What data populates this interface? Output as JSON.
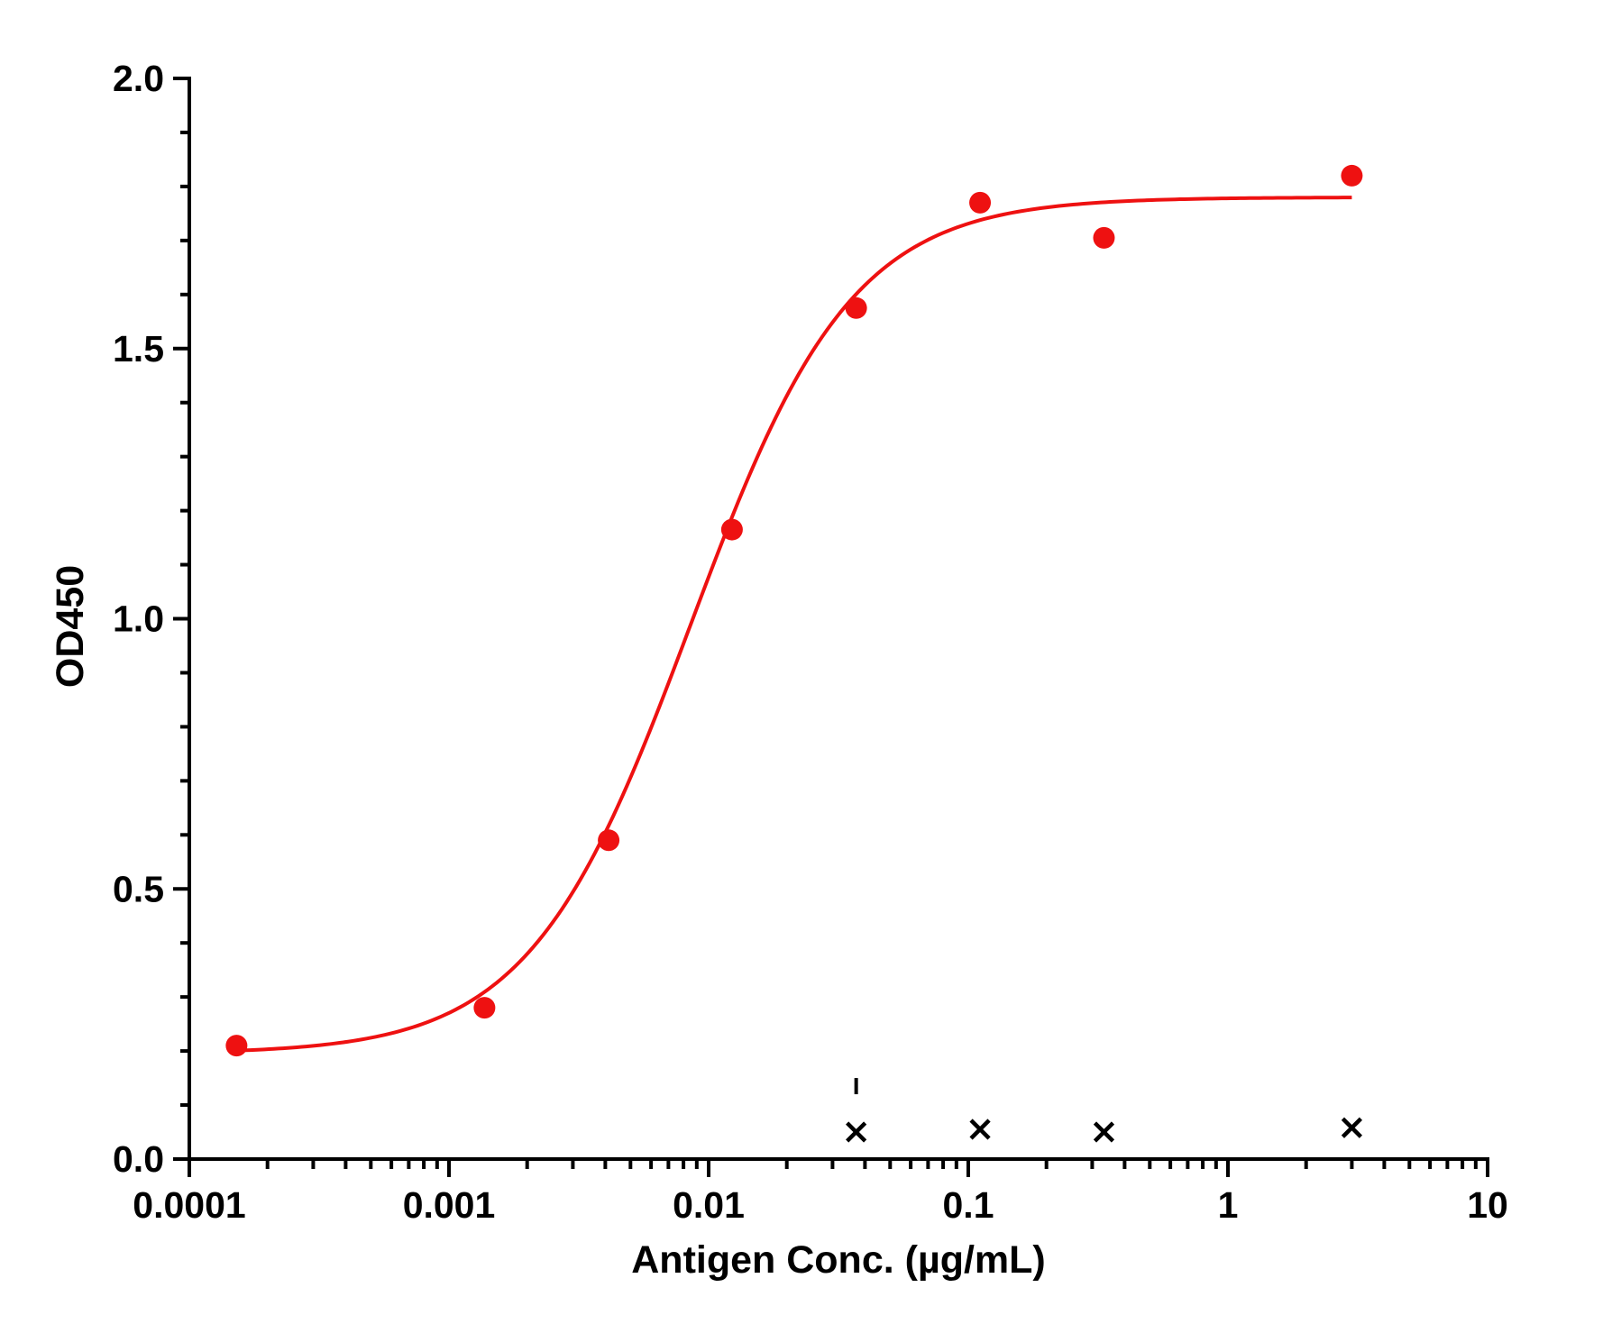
{
  "chart_data": {
    "type": "scatter",
    "xlabel": "Antigen Conc. (µg/mL)",
    "ylabel": "OD450",
    "xscale": "log",
    "xlim": [
      0.0001,
      10
    ],
    "ylim": [
      0,
      2.0
    ],
    "x_ticks": [
      {
        "value": 0.0001,
        "label": "0.0001"
      },
      {
        "value": 0.001,
        "label": "0.001"
      },
      {
        "value": 0.01,
        "label": "0.01"
      },
      {
        "value": 0.1,
        "label": "0.1"
      },
      {
        "value": 1,
        "label": "1"
      },
      {
        "value": 10,
        "label": "10"
      }
    ],
    "y_ticks": [
      {
        "value": 0,
        "label": "0.0"
      },
      {
        "value": 0.5,
        "label": "0.5"
      },
      {
        "value": 1.0,
        "label": "1.0"
      },
      {
        "value": 1.5,
        "label": "1.5"
      },
      {
        "value": 2.0,
        "label": "2.0"
      }
    ],
    "grid": false,
    "series": [
      {
        "marker": "circle",
        "color": "#ee1111",
        "points": [
          {
            "x": 0.000152,
            "y": 0.21
          },
          {
            "x": 0.00137,
            "y": 0.28
          },
          {
            "x": 0.00412,
            "y": 0.59
          },
          {
            "x": 0.0123,
            "y": 1.165
          },
          {
            "x": 0.037,
            "y": 1.575
          },
          {
            "x": 0.111,
            "y": 1.77
          },
          {
            "x": 0.333,
            "y": 1.705
          },
          {
            "x": 3.0,
            "y": 1.82
          }
        ],
        "fit": {
          "model": "4PL",
          "bottom": 0.195,
          "top": 1.78,
          "ec50": 0.0085,
          "hill": 1.4,
          "x_range": [
            0.000152,
            3.0
          ]
        }
      },
      {
        "marker": "x",
        "color": "#000000",
        "points": [
          {
            "x": 0.037,
            "y": 0.05
          },
          {
            "x": 0.111,
            "y": 0.055
          },
          {
            "x": 0.333,
            "y": 0.05
          },
          {
            "x": 3.0,
            "y": 0.058
          }
        ],
        "error_bars": [
          {
            "x": 0.037,
            "low": 0.12,
            "high": 0.15
          }
        ]
      }
    ]
  }
}
